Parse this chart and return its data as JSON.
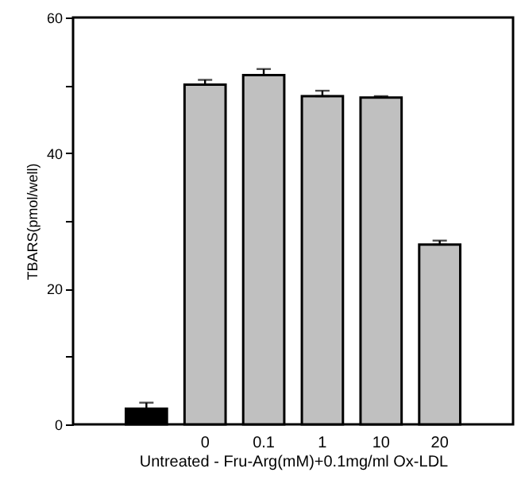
{
  "chart_data": {
    "type": "bar",
    "xlabel": "Untreated - Fru-Arg(mM)+0.1mg/ml Ox-LDL",
    "ylabel": "TBARS(pmol/well)",
    "categories": [
      null,
      "0",
      "0.1",
      "1",
      "10",
      "20"
    ],
    "values": [
      2.3,
      50.1,
      51.5,
      48.4,
      48.2,
      26.5
    ],
    "errors": [
      [
        2.3,
        3.2
      ],
      [
        50.1,
        50.8
      ],
      [
        51.5,
        52.4
      ],
      [
        48.4,
        49.2
      ],
      [
        48.2,
        48.4
      ],
      [
        26.5,
        27.1
      ]
    ],
    "colors": [
      "#000000",
      "#c0c0c0",
      "#c0c0c0",
      "#c0c0c0",
      "#c0c0c0",
      "#c0c0c0"
    ],
    "ylim": [
      0,
      60
    ],
    "yticks": [
      0,
      {
        "value": 10,
        "label": null
      },
      20,
      {
        "value": 30,
        "label": null
      },
      40,
      {
        "value": 50,
        "label": null
      },
      60
    ],
    "grid": false
  }
}
